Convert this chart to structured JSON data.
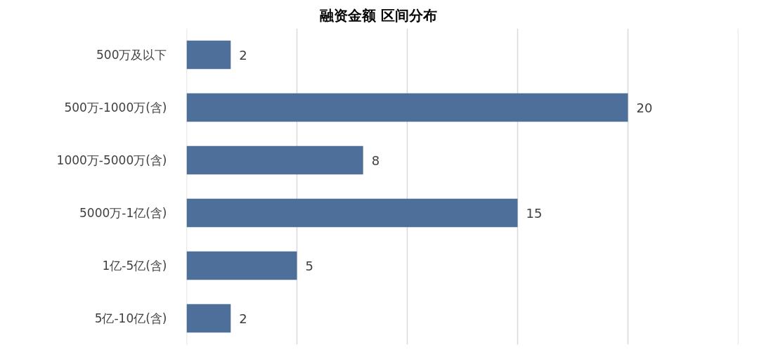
{
  "chart_data": {
    "type": "bar",
    "title": "融资金额 区间分布",
    "orientation": "horizontal",
    "categories": [
      "500万及以下",
      "500万-1000万(含)",
      "1000万-5000万(含)",
      "5000万-1亿(含)",
      "1亿-5亿(含)",
      "5亿-10亿(含)"
    ],
    "values": [
      2,
      20,
      8,
      15,
      5,
      2
    ],
    "color": "#4f6f9b",
    "xlim": [
      0,
      25
    ],
    "xticks": [
      {
        "value": 0,
        "label": null
      },
      {
        "value": 5,
        "label": null
      },
      {
        "value": 10,
        "label": null
      },
      {
        "value": 15,
        "label": null
      },
      {
        "value": 20,
        "label": null
      },
      {
        "value": 25,
        "label": null
      }
    ],
    "tick_labels": "y",
    "grid": "x",
    "data_labels": true
  }
}
